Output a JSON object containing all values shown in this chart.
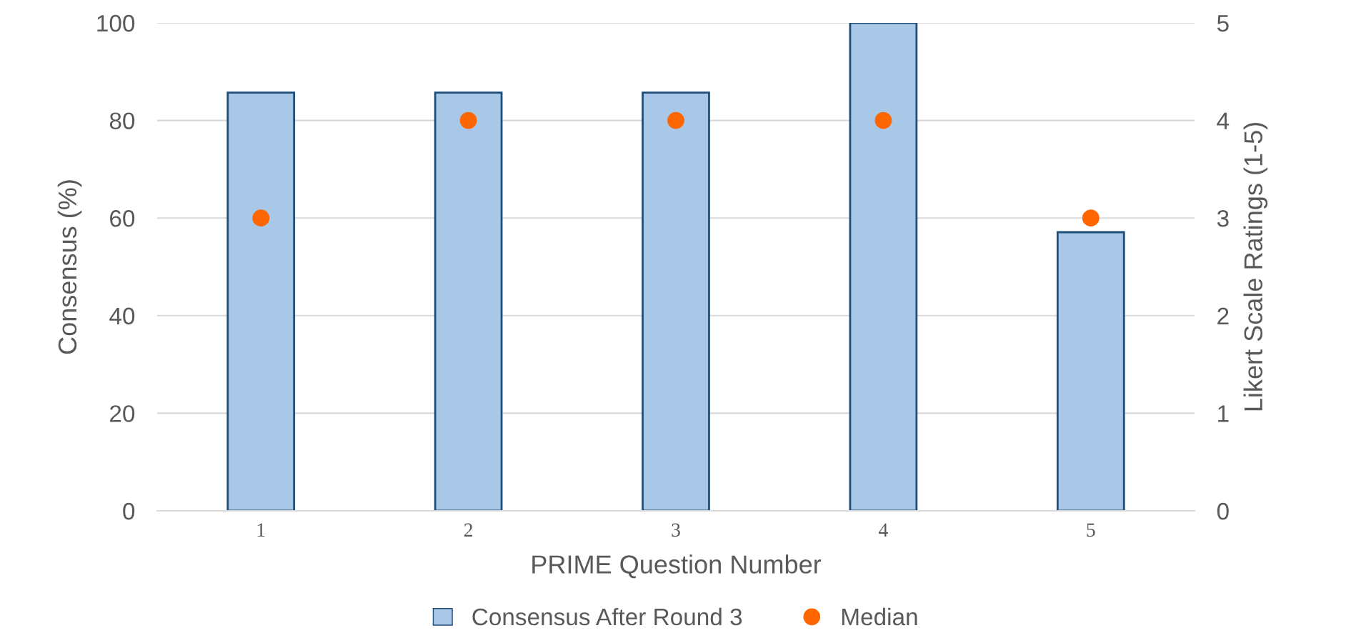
{
  "chart_data": {
    "type": "bar",
    "xlabel": "PRIME Question Number",
    "ylabel": "Consensus (%)",
    "y2label": "Likert Scale Ratings (1-5)",
    "categories": [
      "1",
      "2",
      "3",
      "4",
      "5"
    ],
    "series": [
      {
        "name": "Consensus After Round 3",
        "color": "#a9c8e8",
        "values": [
          85.7,
          85.7,
          85.7,
          100,
          57.1
        ]
      },
      {
        "name": "Median",
        "type": "scatter",
        "color": "#ff6600",
        "axis": "y2",
        "marker": "circle",
        "values": [
          3,
          4,
          4,
          4,
          3
        ]
      }
    ],
    "ylim": [
      0,
      100
    ],
    "yticks": [
      0,
      20,
      40,
      60,
      80,
      100
    ],
    "y2lim": [
      0,
      5
    ],
    "y2ticks": [
      0,
      1,
      2,
      3,
      4,
      5
    ],
    "grid": "y",
    "legend": "bottom"
  }
}
